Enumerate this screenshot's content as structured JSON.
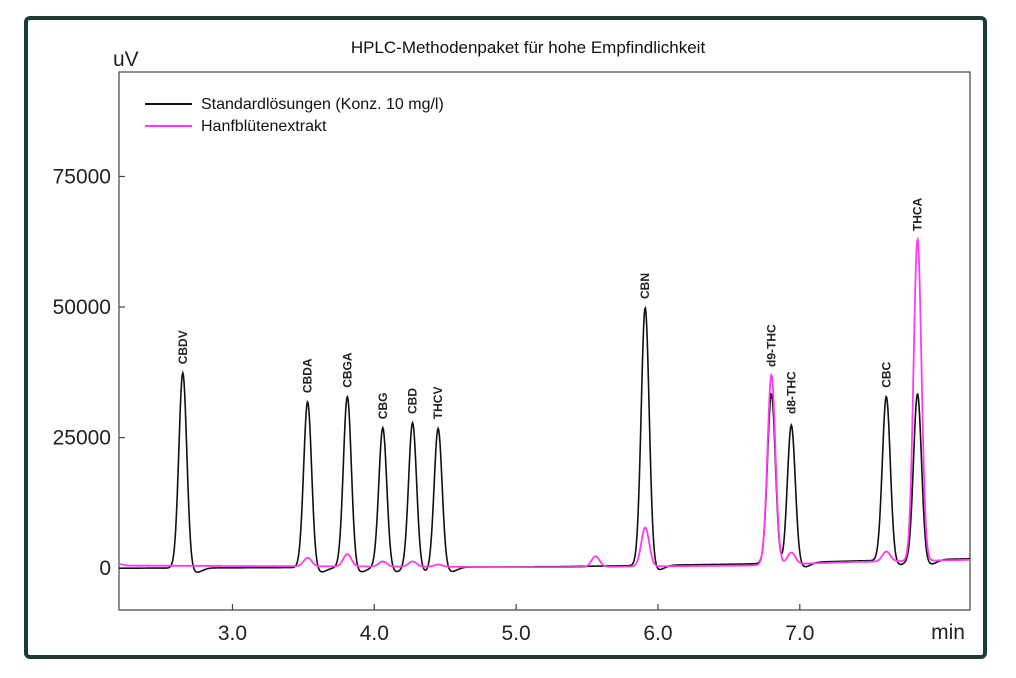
{
  "chart_data": {
    "type": "line",
    "title": "HPLC-Methodenpaket für hohe Empfindlichkeit",
    "ylabel": "uV",
    "xlabel": "min",
    "xlim": [
      2.2,
      8.2
    ],
    "ylim": [
      -8000,
      95000
    ],
    "xticks": [
      "3.0",
      "4.0",
      "5.0",
      "6.0",
      "7.0"
    ],
    "xtick_values": [
      3.0,
      4.0,
      5.0,
      6.0,
      7.0
    ],
    "yticks": [
      "0",
      "25000",
      "50000",
      "75000"
    ],
    "ytick_values": [
      0,
      25000,
      50000,
      75000
    ],
    "legend_position": "top-left",
    "series": [
      {
        "name": "Standardlösungen (Konz. 10 mg/l)",
        "color": "#111111",
        "baseline": [
          [
            2.2,
            0
          ],
          [
            5.3,
            300
          ],
          [
            6.6,
            800
          ],
          [
            7.4,
            1400
          ],
          [
            8.2,
            1800
          ]
        ],
        "peaks": [
          {
            "label": "CBDV",
            "x": 2.65,
            "y": 37500
          },
          {
            "label": "CBDA",
            "x": 3.53,
            "y": 32000
          },
          {
            "label": "CBGA",
            "x": 3.81,
            "y": 33000
          },
          {
            "label": "CBG",
            "x": 4.06,
            "y": 27000
          },
          {
            "label": "CBD",
            "x": 4.27,
            "y": 28000
          },
          {
            "label": "THCV",
            "x": 4.45,
            "y": 27000
          },
          {
            "label": "CBN",
            "x": 5.91,
            "y": 50000
          },
          {
            "label": "d9-THC",
            "x": 6.8,
            "y": 33500
          },
          {
            "label": "d8-THC",
            "x": 6.94,
            "y": 28000
          },
          {
            "label": "CBC",
            "x": 7.61,
            "y": 33000
          },
          {
            "label": "THCA",
            "x": 7.83,
            "y": 33500
          }
        ]
      },
      {
        "name": "Hanfblütenextrakt",
        "color": "#ff3bf0",
        "baseline": [
          [
            2.2,
            500
          ],
          [
            5.3,
            200
          ],
          [
            6.6,
            500
          ],
          [
            7.4,
            1200
          ],
          [
            8.2,
            1600
          ]
        ],
        "peaks": [
          {
            "x": 2.2,
            "y": 800
          },
          {
            "x": 3.53,
            "y": 2000
          },
          {
            "x": 3.81,
            "y": 2700
          },
          {
            "x": 4.06,
            "y": 1300
          },
          {
            "x": 4.27,
            "y": 1300
          },
          {
            "x": 4.45,
            "y": 700
          },
          {
            "x": 5.56,
            "y": 2300
          },
          {
            "x": 5.91,
            "y": 7800
          },
          {
            "x": 6.8,
            "y": 37000
          },
          {
            "x": 6.94,
            "y": 3000
          },
          {
            "x": 7.61,
            "y": 3200
          },
          {
            "x": 7.83,
            "y": 63000
          }
        ]
      }
    ]
  }
}
